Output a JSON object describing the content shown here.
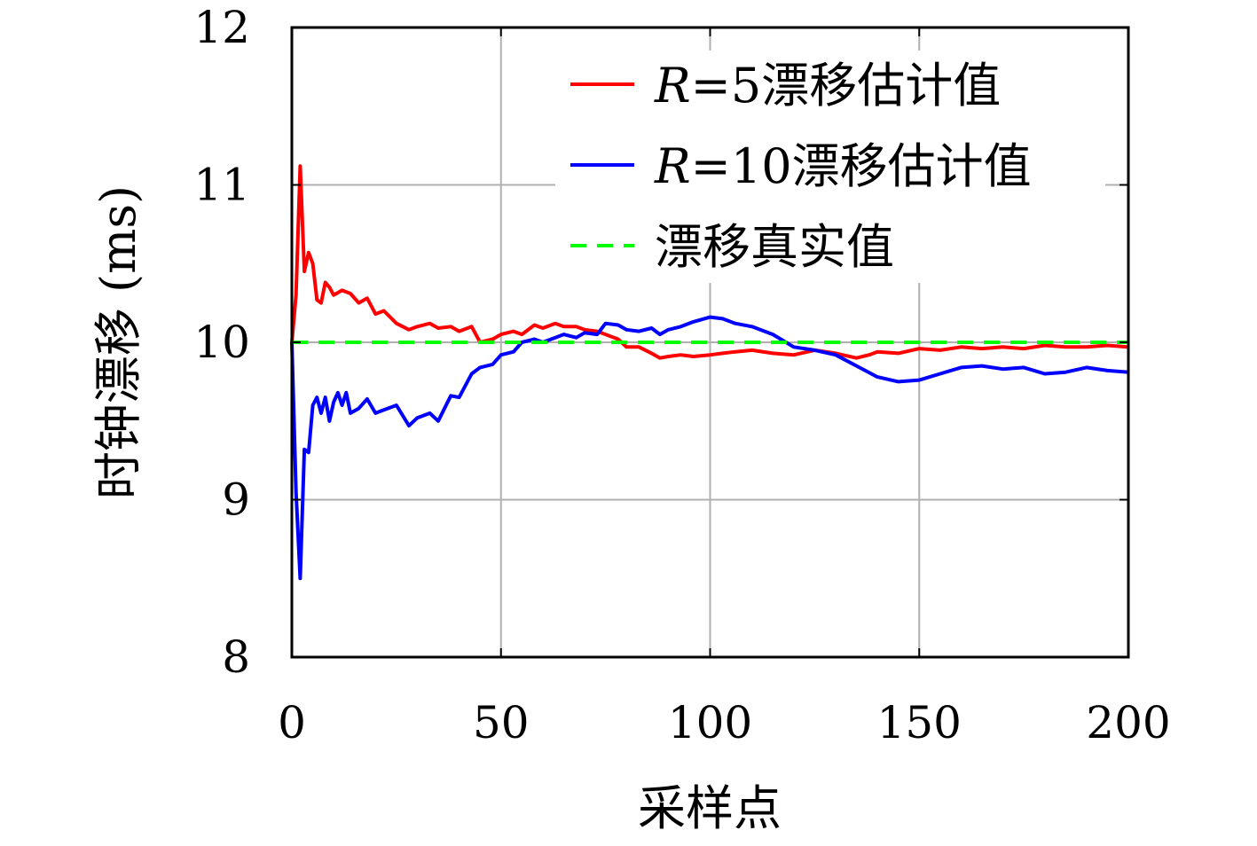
{
  "chart_data": {
    "type": "line",
    "xlabel": "采样点",
    "ylabel": "时钟漂移 (ms)",
    "xlim": [
      0,
      200
    ],
    "ylim": [
      8,
      12
    ],
    "xticks": [
      0,
      50,
      100,
      150,
      200
    ],
    "yticks": [
      8,
      9,
      10,
      11,
      12
    ],
    "xtick_labels": [
      "0",
      "50",
      "100",
      "150",
      "200"
    ],
    "ytick_labels": [
      "8",
      "9",
      "10",
      "11",
      "12"
    ],
    "grid": true,
    "legend_position": "top-right",
    "series": [
      {
        "name": "R=5漂移估计值",
        "legend_italic": "R",
        "legend_rest": "=5漂移估计值",
        "color": "#ff0000",
        "dash": "solid",
        "x": [
          0,
          1,
          2,
          3,
          4,
          5,
          6,
          7,
          8,
          9,
          10,
          12,
          14,
          16,
          18,
          20,
          22,
          25,
          28,
          30,
          33,
          35,
          38,
          40,
          43,
          45,
          48,
          50,
          53,
          55,
          58,
          60,
          63,
          65,
          68,
          70,
          73,
          75,
          78,
          80,
          83,
          86,
          88,
          90,
          93,
          96,
          100,
          103,
          106,
          110,
          115,
          120,
          125,
          130,
          135,
          138,
          140,
          145,
          150,
          155,
          160,
          165,
          170,
          175,
          180,
          185,
          190,
          195,
          200
        ],
        "y": [
          10.0,
          10.3,
          11.12,
          10.45,
          10.57,
          10.5,
          10.27,
          10.25,
          10.38,
          10.35,
          10.3,
          10.33,
          10.31,
          10.25,
          10.28,
          10.18,
          10.2,
          10.12,
          10.08,
          10.1,
          10.12,
          10.09,
          10.1,
          10.07,
          10.1,
          10.0,
          10.02,
          10.05,
          10.07,
          10.05,
          10.11,
          10.09,
          10.12,
          10.1,
          10.1,
          10.08,
          10.07,
          10.05,
          10.02,
          9.97,
          9.97,
          9.93,
          9.9,
          9.91,
          9.92,
          9.91,
          9.92,
          9.93,
          9.94,
          9.95,
          9.93,
          9.92,
          9.95,
          9.93,
          9.9,
          9.92,
          9.94,
          9.93,
          9.96,
          9.95,
          9.97,
          9.96,
          9.97,
          9.96,
          9.98,
          9.97,
          9.97,
          9.98,
          9.97
        ]
      },
      {
        "name": "R=10漂移估计值",
        "legend_italic": "R",
        "legend_rest": "=10漂移估计值",
        "color": "#0000ff",
        "dash": "solid",
        "x": [
          0,
          1,
          2,
          3,
          4,
          5,
          6,
          7,
          8,
          9,
          10,
          11,
          12,
          13,
          14,
          16,
          18,
          20,
          22,
          25,
          28,
          30,
          33,
          35,
          38,
          40,
          43,
          45,
          48,
          50,
          53,
          55,
          58,
          60,
          63,
          65,
          68,
          70,
          73,
          75,
          78,
          80,
          83,
          86,
          88,
          90,
          93,
          96,
          100,
          103,
          106,
          110,
          115,
          120,
          125,
          130,
          135,
          140,
          145,
          150,
          155,
          160,
          165,
          170,
          175,
          180,
          185,
          190,
          195,
          200
        ],
        "y": [
          10.0,
          9.05,
          8.5,
          9.32,
          9.3,
          9.6,
          9.65,
          9.55,
          9.65,
          9.5,
          9.62,
          9.68,
          9.6,
          9.68,
          9.55,
          9.58,
          9.64,
          9.55,
          9.57,
          9.6,
          9.47,
          9.52,
          9.55,
          9.5,
          9.66,
          9.65,
          9.8,
          9.84,
          9.86,
          9.92,
          9.94,
          10.0,
          10.02,
          10.0,
          10.03,
          10.05,
          10.03,
          10.06,
          10.05,
          10.12,
          10.11,
          10.08,
          10.07,
          10.09,
          10.05,
          10.08,
          10.1,
          10.13,
          10.16,
          10.15,
          10.12,
          10.1,
          10.05,
          9.97,
          9.95,
          9.92,
          9.85,
          9.78,
          9.75,
          9.76,
          9.8,
          9.84,
          9.85,
          9.83,
          9.84,
          9.8,
          9.81,
          9.84,
          9.82,
          9.81
        ]
      },
      {
        "name": "漂移真实值",
        "color": "#00ff00",
        "dash": "dashed",
        "x": [
          0,
          200
        ],
        "y": [
          10,
          10
        ]
      }
    ]
  }
}
